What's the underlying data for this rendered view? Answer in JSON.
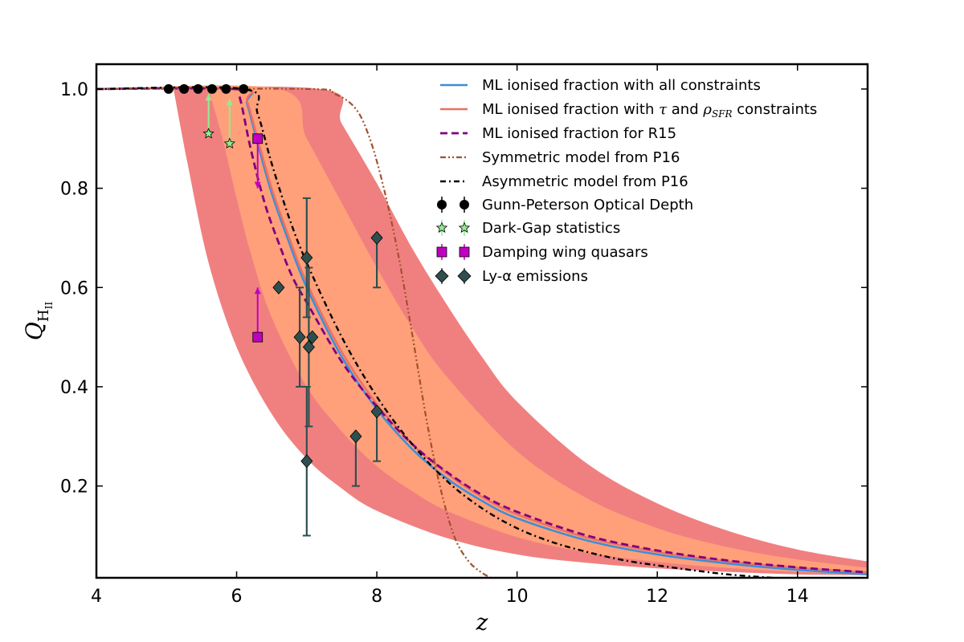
{
  "chart_data": {
    "type": "line",
    "xlabel": "z",
    "ylabel_main": "Q",
    "ylabel_sub": "H",
    "ylabel_subsub": "II",
    "xlim": [
      4,
      15
    ],
    "ylim": [
      0.015,
      1.05
    ],
    "xticks": [
      {
        "value": 4,
        "label": "4"
      },
      {
        "value": 6,
        "label": "6"
      },
      {
        "value": 8,
        "label": "8"
      },
      {
        "value": 10,
        "label": "10"
      },
      {
        "value": 12,
        "label": "12"
      },
      {
        "value": 14,
        "label": "14"
      }
    ],
    "yticks": [
      {
        "value": 0.2,
        "label": "0.2"
      },
      {
        "value": 0.4,
        "label": "0.4"
      },
      {
        "value": 0.6,
        "label": "0.6"
      },
      {
        "value": 0.8,
        "label": "0.8"
      },
      {
        "value": 1.0,
        "label": "1.0"
      }
    ],
    "bands": [
      {
        "level": "2-sigma",
        "color": "#f08080",
        "upper": [
          [
            4,
            1.0
          ],
          [
            7.2,
            1.0
          ],
          [
            7.5,
            0.93
          ],
          [
            8,
            0.81
          ],
          [
            8.5,
            0.68
          ],
          [
            9,
            0.565
          ],
          [
            9.5,
            0.46
          ],
          [
            10,
            0.37
          ],
          [
            11,
            0.245
          ],
          [
            12,
            0.165
          ],
          [
            13,
            0.11
          ],
          [
            14,
            0.072
          ],
          [
            15,
            0.048
          ]
        ],
        "lower": [
          [
            15,
            0.02
          ],
          [
            14,
            0.022
          ],
          [
            13,
            0.027
          ],
          [
            12,
            0.034
          ],
          [
            11,
            0.045
          ],
          [
            10,
            0.062
          ],
          [
            9,
            0.095
          ],
          [
            8,
            0.15
          ],
          [
            7.5,
            0.195
          ],
          [
            7,
            0.255
          ],
          [
            6.5,
            0.345
          ],
          [
            6,
            0.48
          ],
          [
            5.6,
            0.65
          ],
          [
            5.3,
            0.85
          ],
          [
            5.1,
            1.0
          ]
        ]
      },
      {
        "level": "1-sigma",
        "color": "#ffa07a",
        "upper": [
          [
            4,
            1.0
          ],
          [
            6.6,
            1.0
          ],
          [
            7,
            0.9
          ],
          [
            7.5,
            0.77
          ],
          [
            8,
            0.64
          ],
          [
            8.5,
            0.52
          ],
          [
            9,
            0.42
          ],
          [
            10,
            0.27
          ],
          [
            11,
            0.175
          ],
          [
            12,
            0.115
          ],
          [
            13,
            0.077
          ],
          [
            14,
            0.052
          ],
          [
            15,
            0.035
          ]
        ],
        "lower": [
          [
            15,
            0.022
          ],
          [
            14,
            0.027
          ],
          [
            13,
            0.035
          ],
          [
            12,
            0.047
          ],
          [
            11,
            0.066
          ],
          [
            10,
            0.097
          ],
          [
            9,
            0.15
          ],
          [
            8.5,
            0.19
          ],
          [
            8,
            0.24
          ],
          [
            7.5,
            0.31
          ],
          [
            7,
            0.4
          ],
          [
            6.5,
            0.54
          ],
          [
            6.2,
            0.67
          ],
          [
            6,
            0.78
          ],
          [
            5.8,
            0.9
          ],
          [
            5.6,
            1.0
          ]
        ]
      }
    ],
    "series": [
      {
        "name": "ML ionised fraction with all constraints",
        "style": "solid",
        "color": "#3a8fd8",
        "width": 2.5,
        "points": [
          [
            4,
            1.0
          ],
          [
            6.05,
            1.0
          ],
          [
            6.15,
            0.97
          ],
          [
            6.3,
            0.89
          ],
          [
            6.5,
            0.79
          ],
          [
            6.75,
            0.69
          ],
          [
            7,
            0.6
          ],
          [
            7.5,
            0.46
          ],
          [
            8,
            0.355
          ],
          [
            8.5,
            0.275
          ],
          [
            9,
            0.215
          ],
          [
            9.5,
            0.17
          ],
          [
            10,
            0.135
          ],
          [
            11,
            0.09
          ],
          [
            12,
            0.062
          ],
          [
            13,
            0.044
          ],
          [
            14,
            0.031
          ],
          [
            15,
            0.022
          ]
        ]
      },
      {
        "name": "ML ionised fraction with τ and ρSFR constraints",
        "style": "solid",
        "color": "#ec7063",
        "width": 2.5,
        "points": [
          [
            4,
            1.0
          ],
          [
            6.05,
            1.0
          ],
          [
            6.15,
            0.975
          ],
          [
            6.3,
            0.9
          ],
          [
            6.5,
            0.8
          ],
          [
            6.75,
            0.7
          ],
          [
            7,
            0.61
          ],
          [
            7.5,
            0.47
          ],
          [
            8,
            0.365
          ],
          [
            8.5,
            0.285
          ],
          [
            9,
            0.225
          ],
          [
            9.5,
            0.178
          ],
          [
            10,
            0.143
          ],
          [
            11,
            0.096
          ],
          [
            12,
            0.067
          ],
          [
            13,
            0.048
          ],
          [
            14,
            0.035
          ],
          [
            15,
            0.026
          ]
        ]
      },
      {
        "name": "ML ionised fraction for R15",
        "style": "dashed",
        "color": "#800080",
        "width": 2.8,
        "points": [
          [
            4,
            1.0
          ],
          [
            5.95,
            1.0
          ],
          [
            6.05,
            0.98
          ],
          [
            6.2,
            0.88
          ],
          [
            6.4,
            0.77
          ],
          [
            6.6,
            0.69
          ],
          [
            6.8,
            0.62
          ],
          [
            7,
            0.57
          ],
          [
            7.5,
            0.45
          ],
          [
            8,
            0.36
          ],
          [
            8.5,
            0.285
          ],
          [
            9,
            0.228
          ],
          [
            9.5,
            0.182
          ],
          [
            10,
            0.148
          ],
          [
            11,
            0.1
          ],
          [
            12,
            0.07
          ],
          [
            13,
            0.05
          ],
          [
            14,
            0.036
          ],
          [
            15,
            0.026
          ]
        ]
      },
      {
        "name": "Symmetric model from P16",
        "style": "dashdotdot",
        "color": "#a0522d",
        "width": 2.2,
        "points": [
          [
            4,
            1.0
          ],
          [
            7,
            1.0
          ],
          [
            7.4,
            0.99
          ],
          [
            7.7,
            0.96
          ],
          [
            7.9,
            0.9
          ],
          [
            8.1,
            0.8
          ],
          [
            8.3,
            0.67
          ],
          [
            8.5,
            0.51
          ],
          [
            8.7,
            0.34
          ],
          [
            8.9,
            0.2
          ],
          [
            9.1,
            0.1
          ],
          [
            9.3,
            0.05
          ],
          [
            9.5,
            0.025
          ],
          [
            9.7,
            0.01
          ]
        ]
      },
      {
        "name": "Asymmetric model from P16",
        "style": "dashdot",
        "color": "#000000",
        "width": 2.4,
        "points": [
          [
            4,
            1.0
          ],
          [
            6.1,
            1.0
          ],
          [
            6.3,
            0.95
          ],
          [
            6.5,
            0.85
          ],
          [
            6.75,
            0.74
          ],
          [
            7,
            0.65
          ],
          [
            7.5,
            0.5
          ],
          [
            8,
            0.38
          ],
          [
            8.5,
            0.285
          ],
          [
            9,
            0.21
          ],
          [
            9.5,
            0.155
          ],
          [
            10,
            0.115
          ],
          [
            10.5,
            0.087
          ],
          [
            11,
            0.067
          ],
          [
            11.5,
            0.051
          ],
          [
            12,
            0.04
          ],
          [
            13,
            0.022
          ],
          [
            14,
            0.012
          ]
        ]
      }
    ],
    "observations": [
      {
        "name": "Gunn-Peterson Optical Depth",
        "marker": "circle",
        "color": "#000000",
        "points": [
          [
            5.03,
            1.0
          ],
          [
            5.25,
            1.0
          ],
          [
            5.45,
            1.0
          ],
          [
            5.65,
            1.0
          ],
          [
            5.85,
            1.0
          ],
          [
            6.1,
            1.0
          ]
        ]
      },
      {
        "name": "Dark-Gap statistics",
        "marker": "star",
        "color": "#90ee90",
        "points": [
          {
            "x": 5.6,
            "y": 0.91,
            "lower_limit_to": 0.99
          },
          {
            "x": 5.9,
            "y": 0.89,
            "lower_limit_to": 0.98
          }
        ]
      },
      {
        "name": "Damping wing quasars",
        "marker": "square",
        "color": "#c000c0",
        "points": [
          {
            "x": 6.3,
            "y": 0.9,
            "upper_limit_to": 0.8
          },
          {
            "x": 6.3,
            "y": 0.5,
            "lower_limit_to": 0.6
          }
        ]
      },
      {
        "name": "Ly-α emissions",
        "marker": "diamond",
        "color": "#2f4f4f",
        "points": [
          {
            "x": 6.6,
            "y": 0.6
          },
          {
            "x": 6.9,
            "y": 0.5,
            "err_low": 0.4,
            "err_high": 0.6
          },
          {
            "x": 7.0,
            "y": 0.66,
            "err_low": 0.54,
            "err_high": 0.78
          },
          {
            "x": 7.0,
            "y": 0.25,
            "err_low": 0.1,
            "err_high": 0.4
          },
          {
            "x": 7.03,
            "y": 0.48,
            "err_low": 0.32,
            "err_high": 0.64
          },
          {
            "x": 7.08,
            "y": 0.5
          },
          {
            "x": 7.7,
            "y": 0.3,
            "err_low": 0.2,
            "err_high": 0.3
          },
          {
            "x": 8.0,
            "y": 0.7,
            "err_low": 0.6,
            "err_high": 0.7
          },
          {
            "x": 8.0,
            "y": 0.35,
            "err_low": 0.25,
            "err_high": 0.35
          }
        ]
      }
    ],
    "legend": {
      "placement": "top-right",
      "entries": [
        {
          "key": "all",
          "text": "ML ionised fraction with all constraints"
        },
        {
          "key": "tau",
          "text_a": "ML ionised fraction with ",
          "tau": "τ",
          "text_b": " and ",
          "rho": "ρ",
          "rho_sub": "SFR",
          "text_c": " constraints"
        },
        {
          "key": "r15",
          "text": "ML ionised fraction for R15"
        },
        {
          "key": "sym",
          "text": "Symmetric model from P16"
        },
        {
          "key": "asym",
          "text": "Asymmetric model from P16"
        },
        {
          "key": "gp",
          "text": "Gunn-Peterson Optical Depth"
        },
        {
          "key": "dg",
          "text": "Dark-Gap statistics"
        },
        {
          "key": "dw",
          "text": "Damping wing quasars"
        },
        {
          "key": "lya",
          "text": "Ly-α emissions"
        }
      ]
    }
  }
}
